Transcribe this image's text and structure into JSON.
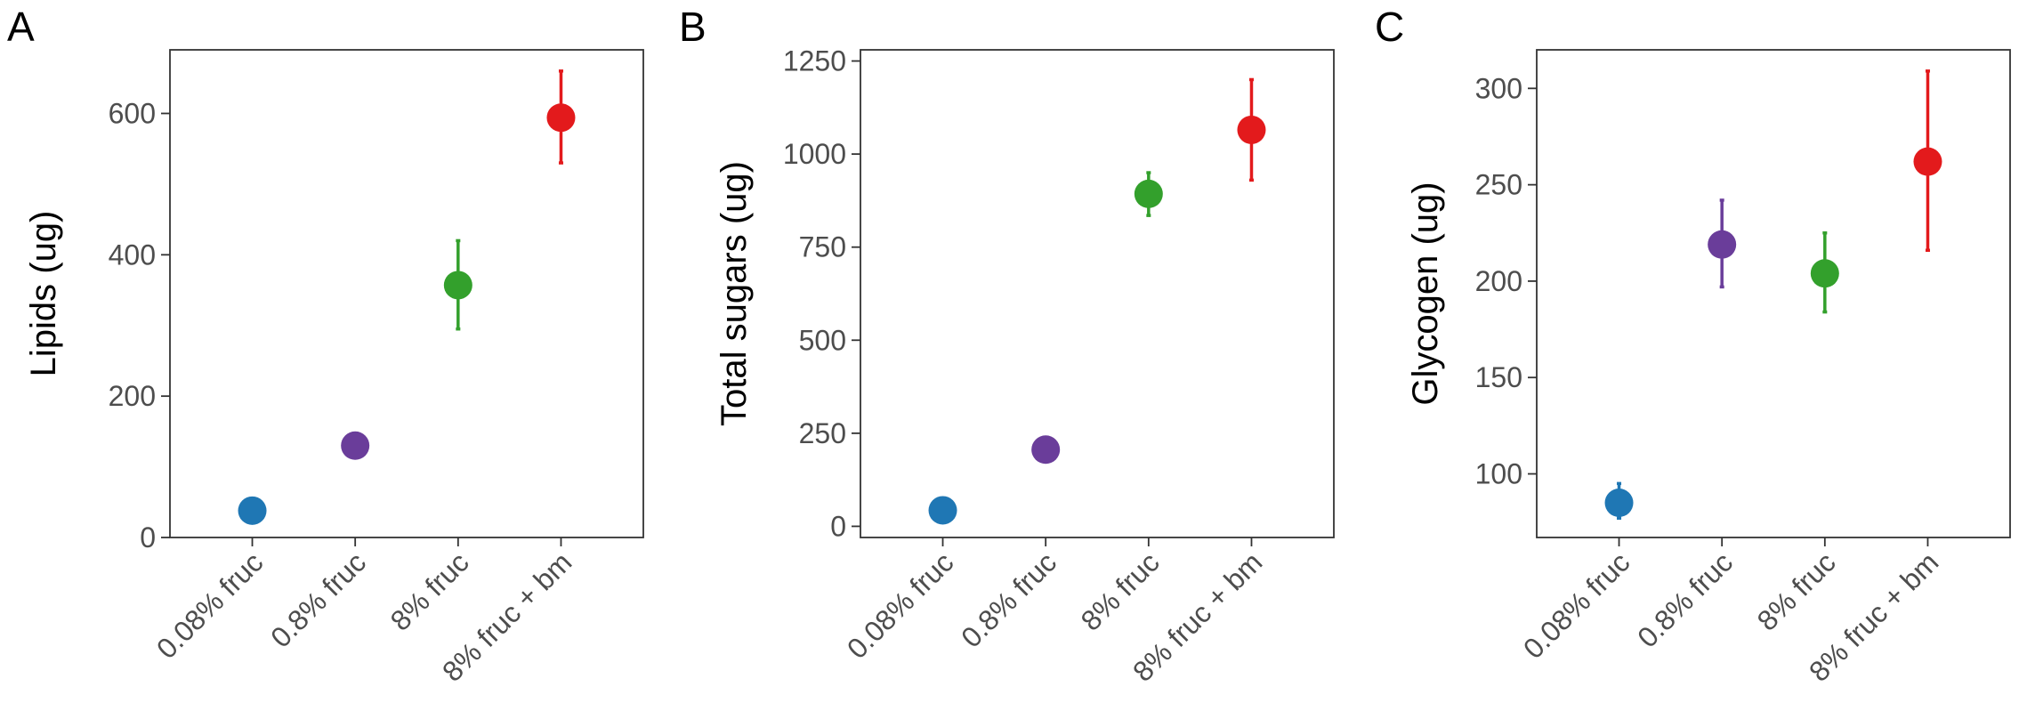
{
  "chart_data": [
    {
      "panel": "A",
      "type": "scatter",
      "ylabel": "Lipids (ug)",
      "ylim": [
        0,
        690
      ],
      "yticks": [
        0,
        200,
        400,
        600
      ],
      "categories": [
        "0.08% fruc",
        "0.8% fruc",
        "8% fruc",
        "8% fruc + bm"
      ],
      "values": [
        38,
        130,
        357,
        594
      ],
      "lower": [
        38,
        130,
        295,
        530
      ],
      "upper": [
        38,
        130,
        420,
        660
      ]
    },
    {
      "panel": "B",
      "type": "scatter",
      "ylabel": "Total sugars (ug)",
      "ylim": [
        -30,
        1280
      ],
      "yticks": [
        0,
        250,
        500,
        750,
        1000,
        1250
      ],
      "categories": [
        "0.08% fruc",
        "0.8% fruc",
        "8% fruc",
        "8% fruc + bm"
      ],
      "values": [
        43,
        206,
        893,
        1065
      ],
      "lower": [
        43,
        206,
        835,
        930
      ],
      "upper": [
        43,
        206,
        950,
        1200
      ]
    },
    {
      "panel": "C",
      "type": "scatter",
      "ylabel": "Glycogen (ug)",
      "ylim": [
        67,
        320
      ],
      "yticks": [
        100,
        150,
        200,
        250,
        300
      ],
      "categories": [
        "0.08% fruc",
        "0.8% fruc",
        "8% fruc",
        "8% fruc + bm"
      ],
      "values": [
        85,
        219,
        204,
        262
      ],
      "lower": [
        77,
        197,
        184,
        216
      ],
      "upper": [
        95,
        242,
        225,
        309
      ]
    }
  ],
  "colors": [
    "#1f77b4",
    "#6a3d9a",
    "#33a02c",
    "#e31a1c"
  ]
}
